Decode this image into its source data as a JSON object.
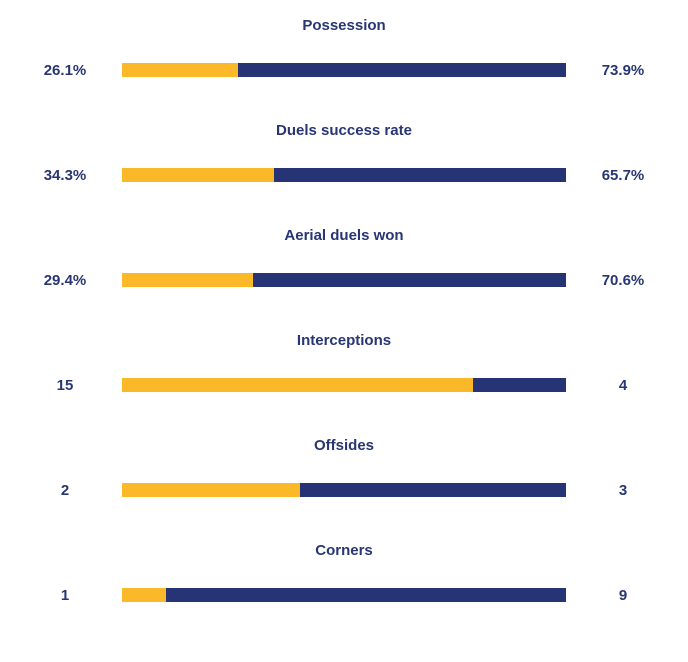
{
  "chart_data": {
    "type": "bar",
    "orientation": "horizontal-stacked-comparison",
    "colors": {
      "home": "#fbb829",
      "away": "#263476",
      "text": "#283673"
    },
    "stats": [
      {
        "title": "Possession",
        "home_label": "26.1%",
        "away_label": "73.9%",
        "home": 26.1,
        "away": 73.9
      },
      {
        "title": "Duels success rate",
        "home_label": "34.3%",
        "away_label": "65.7%",
        "home": 34.3,
        "away": 65.7
      },
      {
        "title": "Aerial duels won",
        "home_label": "29.4%",
        "away_label": "70.6%",
        "home": 29.4,
        "away": 70.6
      },
      {
        "title": "Interceptions",
        "home_label": "15",
        "away_label": "4",
        "home": 15,
        "away": 4
      },
      {
        "title": "Offsides",
        "home_label": "2",
        "away_label": "3",
        "home": 2,
        "away": 3
      },
      {
        "title": "Corners",
        "home_label": "1",
        "away_label": "9",
        "home": 1,
        "away": 9
      }
    ]
  }
}
